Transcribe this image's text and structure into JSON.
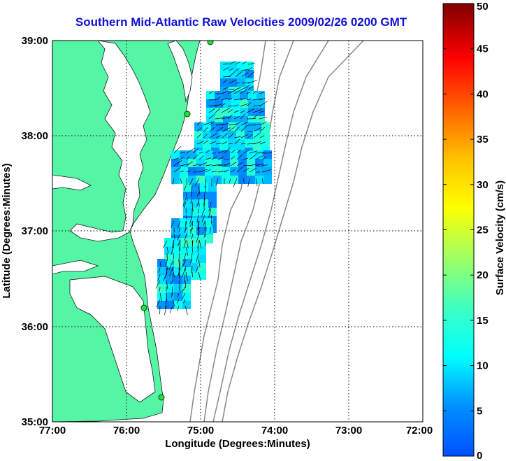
{
  "title": "Southern Mid-Atlantic Raw Velocities 2009/02/26 0200 GMT",
  "map": {
    "x_axis_label": "Longitude (Degrees:Minutes)",
    "y_axis_label": "Latitude (Degrees:Minutes)",
    "x_ticks": [
      "77:00",
      "76:00",
      "75:00",
      "74:00",
      "73:00",
      "72:00"
    ],
    "y_ticks": [
      "39:00",
      "38:00",
      "37:00",
      "36:00",
      "35:00"
    ],
    "lon_range": [
      -77,
      -72
    ],
    "lat_range": [
      35,
      39
    ],
    "grid": "dotted",
    "land_color": "#55f5a6",
    "ocean_color": "#ffffff",
    "contour_color": "#888888",
    "radar_stations": 4
  },
  "colorbar": {
    "label": "Surface Velocity (cm/s)",
    "ticks": [
      "0",
      "5",
      "10",
      "15",
      "20",
      "25",
      "30",
      "35",
      "40",
      "45",
      "50"
    ],
    "range": [
      0,
      50
    ],
    "colormap": "jet"
  },
  "chart_data": {
    "type": "heatmap",
    "title": "Southern Mid-Atlantic Raw Velocities 2009/02/26 0200 GMT",
    "xlabel": "Longitude (Degrees:Minutes)",
    "ylabel": "Latitude (Degrees:Minutes)",
    "colorbar_label": "Surface Velocity (cm/s)",
    "xlim": [
      -77,
      -72
    ],
    "ylim": [
      35,
      39
    ],
    "clim": [
      0,
      50
    ],
    "typical_speed_range_cm_s": [
      3,
      18
    ]
  }
}
